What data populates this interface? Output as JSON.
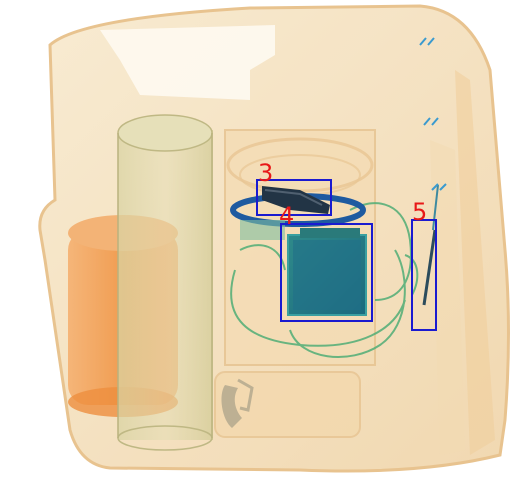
{
  "colors": {
    "box_stroke": "#1a1ad0",
    "label_fill": "#e81818",
    "bag_fill": "#f6e3c0",
    "bag_edge": "#e9c48f",
    "organic_orange": "#f3a25a",
    "metal_blue": "#1a5a8a",
    "wire_green": "#5fb37a"
  },
  "detections": [
    {
      "id": "3",
      "label": "3"
    },
    {
      "id": "4",
      "label": "4"
    },
    {
      "id": "5",
      "label": "5"
    }
  ]
}
